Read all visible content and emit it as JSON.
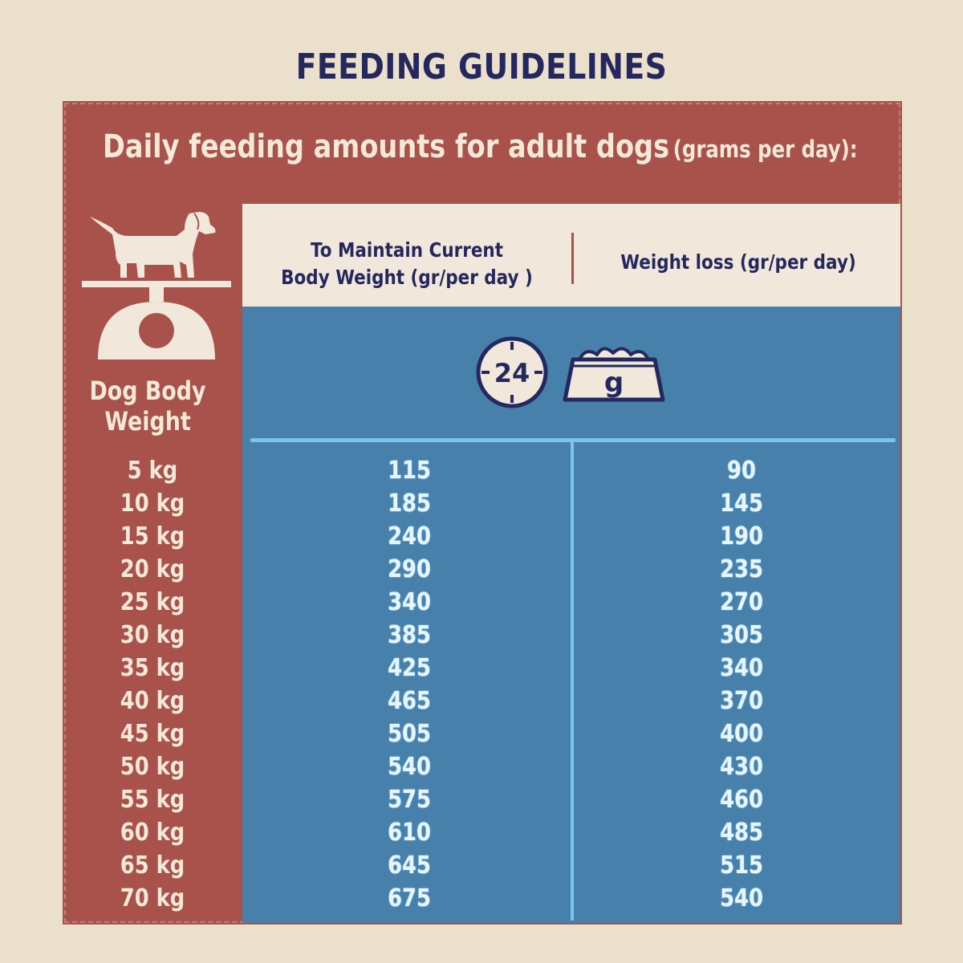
{
  "title": "FEEDING GUIDELINES",
  "subtitle": {
    "main": "Daily feeding amounts for adult dogs",
    "sub": "(grams per day):"
  },
  "columns": {
    "weight": "Dog Body Weight",
    "maintain_line1": "To Maintain Current",
    "maintain_line2": "Body Weight (gr/per day )",
    "loss": "Weight loss (gr/per day)"
  },
  "icons": {
    "clock_label": "24",
    "bowl_label": "g",
    "dog_scale": "dog-on-scale-icon"
  },
  "colors": {
    "title": "#24285e",
    "red_panel": "#a8524b",
    "blue_panel": "#4780ab",
    "cream": "#f1e8db",
    "background": "#ebe0cb"
  },
  "rows": [
    {
      "weight": "5 kg",
      "maintain": "115",
      "loss": "90"
    },
    {
      "weight": "10 kg",
      "maintain": "185",
      "loss": "145"
    },
    {
      "weight": "15 kg",
      "maintain": "240",
      "loss": "190"
    },
    {
      "weight": "20 kg",
      "maintain": "290",
      "loss": "235"
    },
    {
      "weight": "25 kg",
      "maintain": "340",
      "loss": "270"
    },
    {
      "weight": "30 kg",
      "maintain": "385",
      "loss": "305"
    },
    {
      "weight": "35 kg",
      "maintain": "425",
      "loss": "340"
    },
    {
      "weight": "40 kg",
      "maintain": "465",
      "loss": "370"
    },
    {
      "weight": "45 kg",
      "maintain": "505",
      "loss": "400"
    },
    {
      "weight": "50 kg",
      "maintain": "540",
      "loss": "430"
    },
    {
      "weight": "55 kg",
      "maintain": "575",
      "loss": "460"
    },
    {
      "weight": "60 kg",
      "maintain": "610",
      "loss": "485"
    },
    {
      "weight": "65 kg",
      "maintain": "645",
      "loss": "515"
    },
    {
      "weight": "70 kg",
      "maintain": "675",
      "loss": "540"
    }
  ]
}
